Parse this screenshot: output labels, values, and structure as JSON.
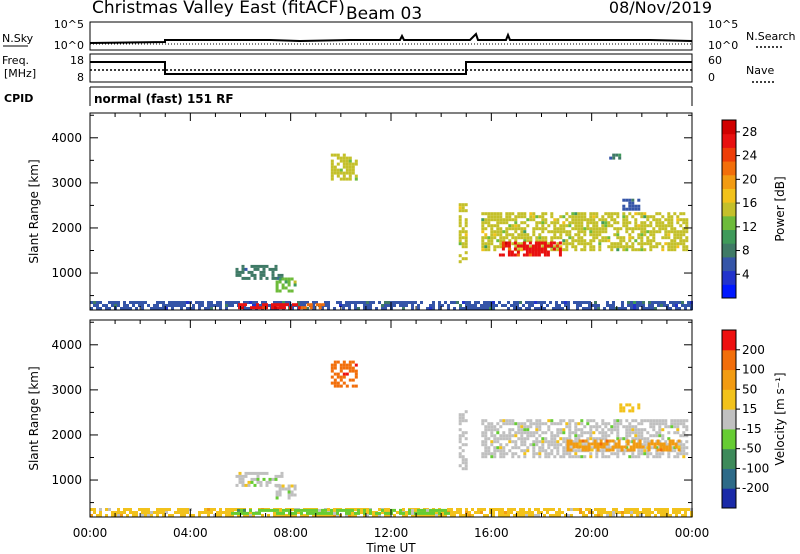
{
  "header": {
    "title": "Christmas Valley East (fitACF)",
    "beam": "Beam 03",
    "date": "08/Nov/2019"
  },
  "noise_panel": {
    "left_label": "N.Sky",
    "right_label": "N.Search",
    "left_ticks": [
      "10^5",
      "10^0"
    ],
    "right_ticks": [
      "10^5",
      "10^0"
    ]
  },
  "freq_panel": {
    "left_label_line1": "Freq.",
    "left_label_line2": "[MHz]",
    "right_label": "Nave",
    "left_ticks": [
      "18",
      "8"
    ],
    "right_ticks": [
      "60",
      "0"
    ]
  },
  "cpid": {
    "label": "CPID",
    "value": "normal (fast) 151 RF"
  },
  "chart_data": [
    {
      "type": "heatmap",
      "name": "power",
      "title": "",
      "xlabel": "Time UT",
      "ylabel": "Slant Range [km]",
      "x_tick_labels": [
        "00:00",
        "04:00",
        "08:00",
        "12:00",
        "16:00",
        "20:00",
        "00:00"
      ],
      "xlim_hours": [
        0,
        24
      ],
      "ylim_km": [
        180,
        4550
      ],
      "y_ticks": [
        1000,
        2000,
        3000,
        4000
      ],
      "colorbar": {
        "label": "Power [dB]",
        "ticks": [
          4,
          8,
          12,
          16,
          20,
          24,
          28
        ],
        "range": [
          0,
          30
        ],
        "colors": [
          "#0018ff",
          "#2233cc",
          "#3555a8",
          "#3f7a66",
          "#3f9a5a",
          "#6dbb3a",
          "#c4c02a",
          "#f2c21b",
          "#f29b12",
          "#f26e0a",
          "#ee3d08",
          "#e81010",
          "#d00000"
        ]
      },
      "regions": [
        {
          "t0": 0.0,
          "t1": 24.0,
          "r0": 190,
          "r1": 380,
          "level": 6
        },
        {
          "t0": 5.9,
          "t1": 8.4,
          "r0": 250,
          "r1": 330,
          "level": 26
        },
        {
          "t0": 8.4,
          "t1": 9.3,
          "r0": 250,
          "r1": 330,
          "level": 22
        },
        {
          "t0": 5.8,
          "t1": 7.6,
          "r0": 880,
          "r1": 1180,
          "level": 8
        },
        {
          "t0": 7.4,
          "t1": 8.2,
          "r0": 580,
          "r1": 900,
          "level": 12
        },
        {
          "t0": 14.7,
          "t1": 15.0,
          "r0": 1250,
          "r1": 2550,
          "level": 14
        },
        {
          "t0": 15.6,
          "t1": 23.8,
          "r0": 1500,
          "r1": 2350,
          "level": 14
        },
        {
          "t0": 16.3,
          "t1": 18.7,
          "r0": 1400,
          "r1": 1700,
          "level": 26
        },
        {
          "t0": 21.1,
          "t1": 21.9,
          "r0": 2400,
          "r1": 2650,
          "level": 6
        },
        {
          "t0": 20.7,
          "t1": 21.1,
          "r0": 3550,
          "r1": 3650,
          "level": 8
        },
        {
          "t0": 9.6,
          "t1": 10.6,
          "r0": 3100,
          "r1": 3650,
          "level": 14
        }
      ]
    },
    {
      "type": "heatmap",
      "name": "velocity",
      "title": "",
      "xlabel": "Time UT",
      "ylabel": "Slant Range [km]",
      "x_tick_labels": [
        "00:00",
        "04:00",
        "08:00",
        "12:00",
        "16:00",
        "20:00",
        "00:00"
      ],
      "xlim_hours": [
        0,
        24
      ],
      "ylim_km": [
        180,
        4550
      ],
      "y_ticks": [
        1000,
        2000,
        3000,
        4000
      ],
      "colorbar": {
        "label": "Velocity [m s⁻¹]",
        "ticks": [
          200,
          100,
          50,
          15,
          -15,
          -50,
          -100,
          -200
        ],
        "range": [
          -250,
          250
        ],
        "colors": [
          "#1a2aa8",
          "#2d6a88",
          "#3d8a5a",
          "#66cc33",
          "#c0c0c0",
          "#f2c21b",
          "#f29b12",
          "#f26e0a",
          "#ee1010"
        ]
      },
      "regions": [
        {
          "t0": 0.0,
          "t1": 24.0,
          "r0": 190,
          "r1": 380,
          "level": 40
        },
        {
          "t0": 5.5,
          "t1": 14.5,
          "r0": 230,
          "r1": 360,
          "level": -30
        },
        {
          "t0": 5.8,
          "t1": 7.6,
          "r0": 880,
          "r1": 1180,
          "level": 0
        },
        {
          "t0": 7.4,
          "t1": 8.2,
          "r0": 580,
          "r1": 900,
          "level": 0
        },
        {
          "t0": 14.7,
          "t1": 15.0,
          "r0": 1250,
          "r1": 2550,
          "level": 0
        },
        {
          "t0": 15.6,
          "t1": 23.8,
          "r0": 1500,
          "r1": 2350,
          "level": 0
        },
        {
          "t0": 19.0,
          "t1": 23.5,
          "r0": 1650,
          "r1": 1900,
          "level": 120
        },
        {
          "t0": 21.1,
          "t1": 21.9,
          "r0": 2550,
          "r1": 2700,
          "level": 60
        },
        {
          "t0": 9.6,
          "t1": 10.6,
          "r0": 3100,
          "r1": 3650,
          "level": 180
        }
      ]
    }
  ]
}
